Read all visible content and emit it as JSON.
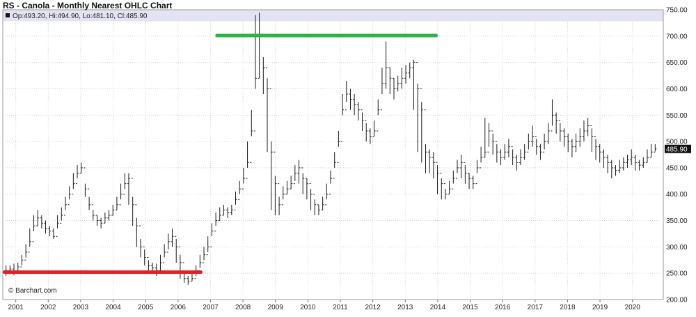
{
  "chart_data": {
    "type": "ohlc",
    "title": "RS - Canola - Monthly Nearest OHLC Chart",
    "info_bar": "Op:493.20, Hi:494.90, Lo:481.10, Cl:485.90",
    "last_price_label": "485.90",
    "last_price": 485.9,
    "watermark": "© Barchart.com",
    "ylim": [
      200,
      750
    ],
    "xlim": [
      2000.6,
      2020.95
    ],
    "y_ticks": [
      200,
      250,
      300,
      350,
      400,
      450,
      500,
      550,
      600,
      650,
      700,
      750
    ],
    "y_tick_labels": [
      "200.00",
      "250.00",
      "300.00",
      "350.00",
      "400.00",
      "450.00",
      "500.00",
      "550.00",
      "600.00",
      "650.00",
      "700.00",
      "750.00"
    ],
    "x_ticks": [
      "2001",
      "2002",
      "2003",
      "2004",
      "2005",
      "2006",
      "2007",
      "2008",
      "2009",
      "2010",
      "2011",
      "2012",
      "2013",
      "2014",
      "2015",
      "2016",
      "2017",
      "2018",
      "2019",
      "2020"
    ],
    "grid": true,
    "annotations": [
      {
        "type": "support-line",
        "color": "#e02222",
        "y": 252,
        "x_start": 2000.65,
        "x_end": 2006.7
      },
      {
        "type": "resistance-line",
        "color": "#2db34a",
        "y": 701,
        "x_start": 2007.2,
        "x_end": 2013.95
      }
    ],
    "closes": [
      255,
      258,
      253,
      262,
      275,
      290,
      310,
      340,
      355,
      345,
      335,
      330,
      320,
      345,
      360,
      380,
      400,
      420,
      440,
      450,
      410,
      380,
      360,
      350,
      345,
      355,
      360,
      370,
      380,
      400,
      420,
      430,
      380,
      340,
      300,
      280,
      265,
      260,
      255,
      270,
      290,
      310,
      320,
      300,
      270,
      240,
      235,
      240,
      255,
      270,
      285,
      300,
      330,
      350,
      360,
      370,
      365,
      370,
      390,
      410,
      430,
      460,
      520,
      620,
      700,
      640,
      600,
      480,
      420,
      380,
      400,
      410,
      420,
      440,
      450,
      430,
      420,
      400,
      380,
      370,
      380,
      400,
      430,
      460,
      500,
      560,
      590,
      580,
      570,
      560,
      540,
      520,
      510,
      520,
      560,
      610,
      640,
      620,
      600,
      610,
      620,
      630,
      640,
      650,
      600,
      560,
      480,
      470,
      460,
      440,
      420,
      400,
      410,
      430,
      450,
      460,
      440,
      430,
      420,
      450,
      470,
      480,
      520,
      500,
      480,
      470,
      480,
      490,
      470,
      460,
      470,
      480,
      500,
      510,
      490,
      480,
      500,
      520,
      550,
      540,
      520,
      510,
      500,
      490,
      500,
      510,
      520,
      530,
      510,
      490,
      480,
      470,
      460,
      450,
      445,
      450,
      460,
      465,
      470,
      460,
      455,
      460,
      470,
      480,
      485.9
    ],
    "highs": [
      265,
      265,
      268,
      270,
      285,
      305,
      335,
      360,
      370,
      360,
      350,
      340,
      335,
      360,
      375,
      395,
      415,
      440,
      455,
      460,
      420,
      395,
      370,
      360,
      355,
      365,
      370,
      380,
      395,
      420,
      440,
      440,
      395,
      355,
      315,
      295,
      275,
      270,
      268,
      285,
      305,
      325,
      335,
      315,
      285,
      255,
      245,
      255,
      265,
      285,
      300,
      320,
      345,
      365,
      375,
      380,
      375,
      380,
      405,
      425,
      450,
      500,
      560,
      740,
      745,
      660,
      620,
      500,
      435,
      395,
      415,
      425,
      435,
      455,
      465,
      440,
      430,
      410,
      390,
      380,
      395,
      420,
      445,
      480,
      520,
      590,
      615,
      600,
      590,
      575,
      555,
      535,
      525,
      540,
      580,
      640,
      690,
      640,
      620,
      625,
      640,
      645,
      650,
      655,
      610,
      575,
      495,
      485,
      480,
      455,
      430,
      410,
      425,
      445,
      465,
      475,
      455,
      440,
      435,
      465,
      490,
      545,
      535,
      515,
      495,
      485,
      495,
      505,
      485,
      475,
      485,
      495,
      515,
      530,
      505,
      495,
      515,
      535,
      580,
      555,
      535,
      525,
      515,
      505,
      515,
      525,
      540,
      545,
      525,
      505,
      495,
      485,
      475,
      465,
      455,
      465,
      470,
      475,
      485,
      475,
      465,
      470,
      485,
      495,
      494.9
    ],
    "lows": [
      245,
      248,
      246,
      250,
      265,
      280,
      300,
      330,
      340,
      335,
      325,
      320,
      315,
      335,
      350,
      370,
      390,
      410,
      430,
      440,
      395,
      370,
      350,
      340,
      335,
      345,
      350,
      360,
      370,
      390,
      410,
      380,
      340,
      300,
      280,
      265,
      255,
      250,
      245,
      255,
      280,
      295,
      300,
      270,
      240,
      232,
      228,
      235,
      245,
      260,
      275,
      290,
      320,
      340,
      350,
      360,
      355,
      360,
      380,
      400,
      420,
      450,
      510,
      600,
      620,
      590,
      480,
      370,
      360,
      360,
      390,
      400,
      410,
      425,
      420,
      400,
      390,
      370,
      360,
      360,
      370,
      390,
      420,
      450,
      490,
      550,
      575,
      560,
      550,
      540,
      520,
      500,
      495,
      510,
      550,
      590,
      600,
      590,
      580,
      595,
      600,
      610,
      620,
      560,
      480,
      460,
      440,
      440,
      430,
      400,
      390,
      390,
      400,
      420,
      440,
      430,
      420,
      410,
      410,
      440,
      460,
      470,
      490,
      475,
      460,
      455,
      465,
      470,
      455,
      445,
      455,
      465,
      485,
      490,
      475,
      465,
      485,
      495,
      530,
      515,
      500,
      490,
      480,
      470,
      480,
      490,
      500,
      510,
      480,
      465,
      460,
      450,
      440,
      430,
      435,
      440,
      445,
      450,
      455,
      445,
      445,
      450,
      460,
      470,
      481.1
    ]
  }
}
